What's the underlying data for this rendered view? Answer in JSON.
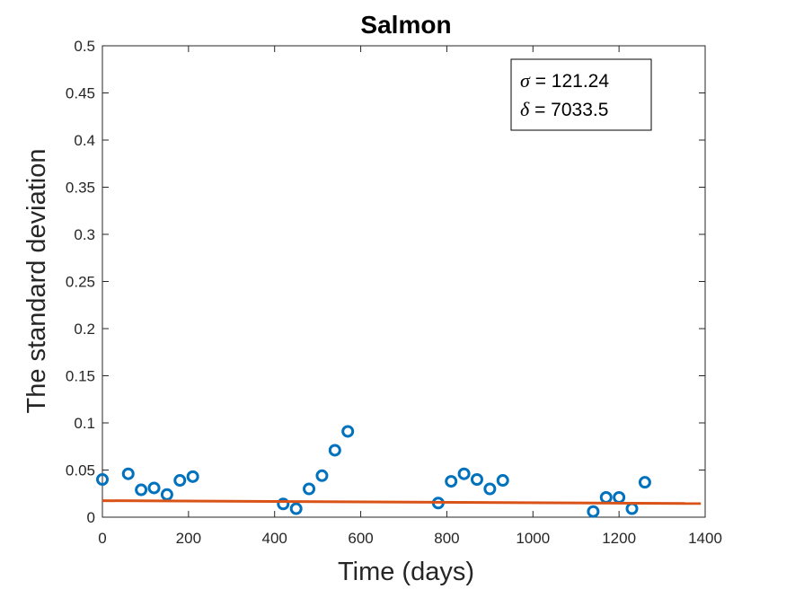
{
  "chart_data": {
    "type": "scatter",
    "title": "Salmon",
    "xlabel": "Time (days)",
    "ylabel": "The standard deviation",
    "xlim": [
      0,
      1400
    ],
    "ylim": [
      0,
      0.5
    ],
    "xticks": [
      0,
      200,
      400,
      600,
      800,
      1000,
      1200,
      1400
    ],
    "yticks": [
      0,
      0.05,
      0.1,
      0.15,
      0.2,
      0.25,
      0.3,
      0.35,
      0.4,
      0.45,
      0.5
    ],
    "xtick_labels": [
      "0",
      "200",
      "400",
      "600",
      "800",
      "1000",
      "1200",
      "1400"
    ],
    "ytick_labels": [
      "0",
      "0.05",
      "0.1",
      "0.15",
      "0.2",
      "0.25",
      "0.3",
      "0.35",
      "0.4",
      "0.45",
      "0.5"
    ],
    "grid": false,
    "series": [
      {
        "type": "scatter",
        "marker": "circle-open",
        "color": "#0072BD",
        "x": [
          0,
          60,
          90,
          120,
          150,
          180,
          210,
          420,
          450,
          480,
          510,
          540,
          570,
          780,
          810,
          840,
          870,
          900,
          930,
          1140,
          1170,
          1200,
          1230,
          1260
        ],
        "y": [
          0.04,
          0.046,
          0.029,
          0.031,
          0.024,
          0.039,
          0.043,
          0.014,
          0.009,
          0.03,
          0.044,
          0.071,
          0.091,
          0.015,
          0.038,
          0.046,
          0.04,
          0.03,
          0.039,
          0.006,
          0.021,
          0.021,
          0.009,
          0.037
        ]
      },
      {
        "type": "line",
        "color": "#D95319",
        "x": [
          0,
          1390
        ],
        "y": [
          0.0175,
          0.0145
        ]
      }
    ],
    "annotation": {
      "position": "top-right",
      "lines": [
        {
          "symbol": "σ",
          "text": " = 121.24"
        },
        {
          "symbol": "δ",
          "text": " = 7033.5"
        }
      ]
    }
  }
}
